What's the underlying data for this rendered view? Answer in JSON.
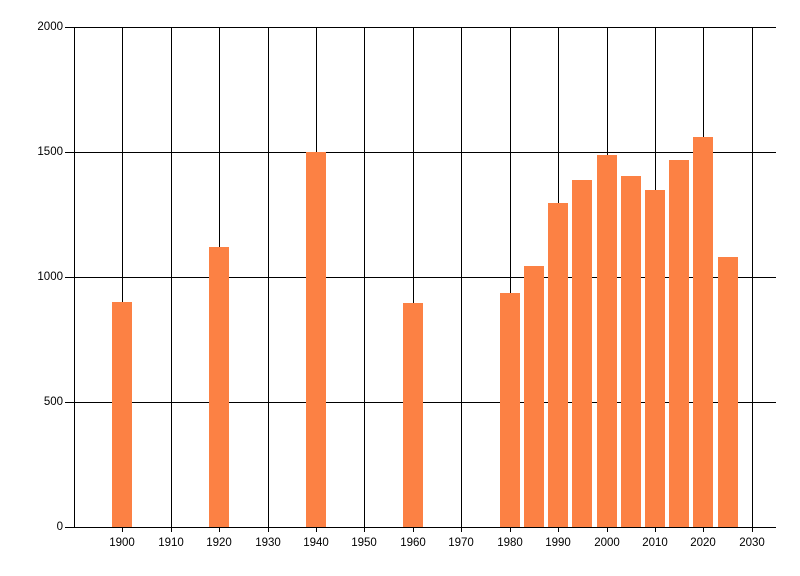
{
  "chart_data": {
    "type": "bar",
    "title": "",
    "xlabel": "",
    "ylabel": "",
    "x": [
      1900,
      1920,
      1940,
      1960,
      1980,
      1985,
      1990,
      1995,
      2000,
      2005,
      2010,
      2015,
      2020,
      2025
    ],
    "values": [
      900,
      1120,
      1500,
      895,
      935,
      1045,
      1295,
      1390,
      1490,
      1405,
      1350,
      1470,
      1560,
      1080
    ],
    "xlim": [
      1890,
      2035
    ],
    "ylim": [
      0,
      2000
    ],
    "x_ticks": [
      1900,
      1910,
      1920,
      1930,
      1940,
      1950,
      1960,
      1970,
      1980,
      1990,
      2000,
      2010,
      2020,
      2030
    ],
    "x_tick_labels": [
      "1900",
      "1910",
      "1920",
      "1930",
      "1940",
      "1950",
      "1960",
      "1970",
      "1980",
      "1990",
      "2000",
      "2010",
      "2020",
      "2030"
    ],
    "y_ticks": [
      0,
      500,
      1000,
      1500,
      2000
    ],
    "y_tick_labels": [
      "0",
      "500",
      "1000",
      "1500",
      "2000"
    ],
    "grid": true,
    "legend": false,
    "bar_width_years": 4.15,
    "colors": {
      "bar": "#FC8144",
      "grid": "#000000",
      "axis": "#000000",
      "text": "#000000",
      "background": "#FFFFFF"
    }
  }
}
